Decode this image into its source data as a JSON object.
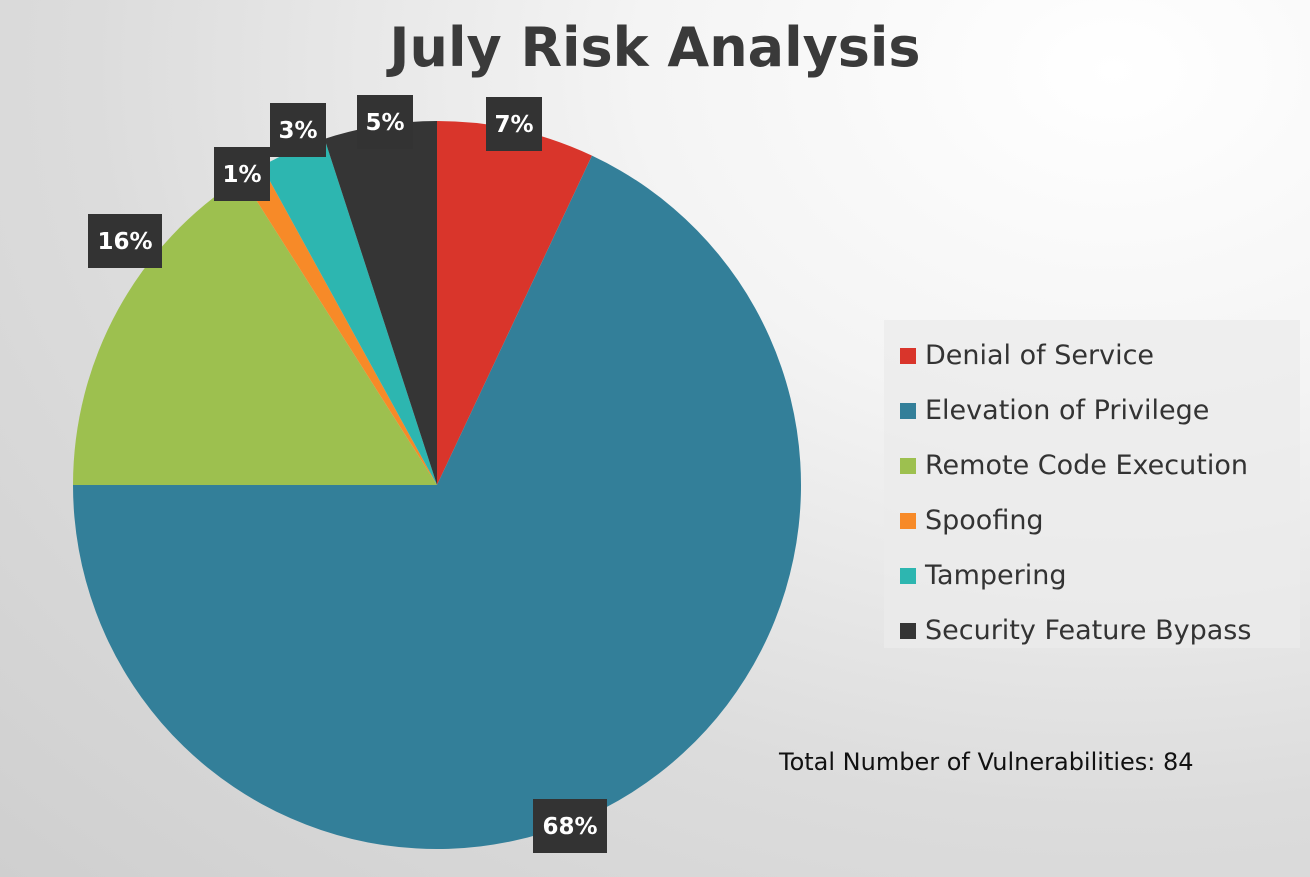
{
  "chart_data": {
    "type": "pie",
    "title": "July Risk Analysis",
    "categories": [
      "Denial of Service",
      "Elevation of Privilege",
      "Remote Code Execution",
      "Spoofing",
      "Tampering",
      "Security Feature Bypass"
    ],
    "values": [
      7,
      68,
      16,
      1,
      3,
      5
    ],
    "data_labels": [
      "7%",
      "68%",
      "16%",
      "1%",
      "3%",
      "5%"
    ],
    "colors": [
      "#d9352b",
      "#337f99",
      "#9dc04f",
      "#f78a28",
      "#2db6b0",
      "#353535"
    ],
    "legend_position": "right",
    "start_angle": "12 o'clock, clockwise"
  },
  "annotation": {
    "total_text": "Total Number of Vulnerabilities: 84"
  }
}
